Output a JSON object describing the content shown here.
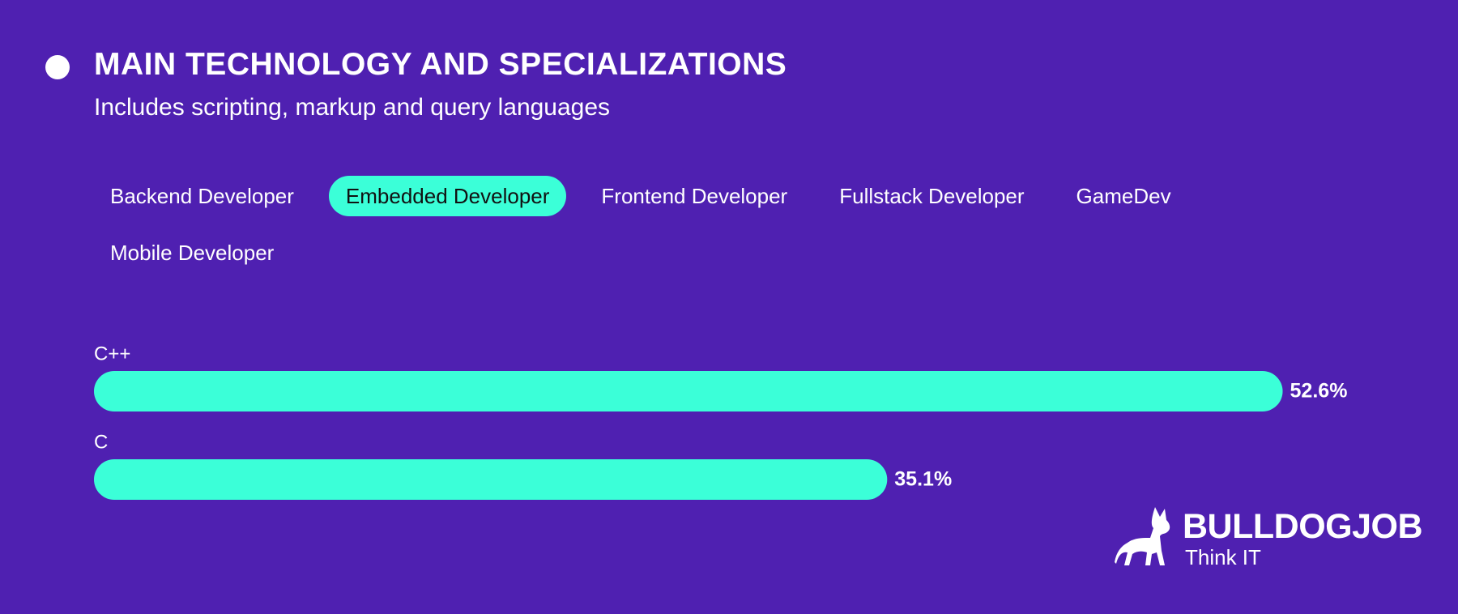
{
  "header": {
    "title": "MAIN TECHNOLOGY AND SPECIALIZATIONS",
    "subtitle": "Includes scripting, markup and query languages"
  },
  "tabs": {
    "items": [
      "Backend Developer",
      "Embedded Developer",
      "Frontend Developer",
      "Fullstack Developer",
      "GameDev",
      "Mobile Developer"
    ],
    "active_index": 1
  },
  "chart_data": {
    "type": "bar",
    "orientation": "horizontal",
    "categories": [
      "C++",
      "C"
    ],
    "values": [
      52.6,
      35.1
    ],
    "value_labels": [
      "52.6%",
      "35.1%"
    ],
    "color": "#3bffd8"
  },
  "logo": {
    "name": "BULLDOGJOB",
    "tagline": "Think IT"
  }
}
